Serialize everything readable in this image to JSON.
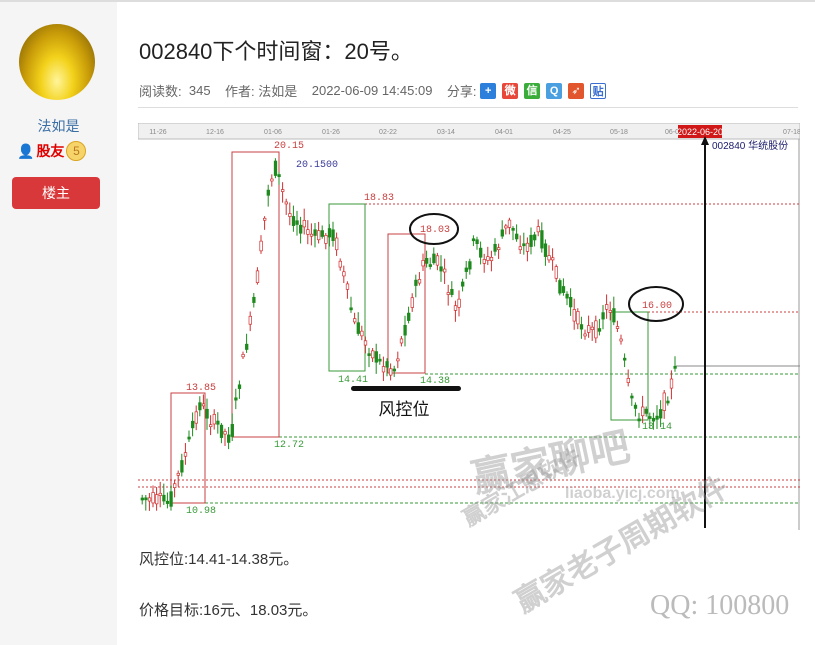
{
  "sidebar": {
    "username": "法如是",
    "rank": "股友",
    "level": "5",
    "owner_button": "楼主"
  },
  "post": {
    "title": "002840下个时间窗：20号。",
    "reads_label": "阅读数:",
    "reads": "345",
    "author_label": "作者:",
    "author": "法如是",
    "datetime": "2022-06-09 14:45:09",
    "share_label": "分享:",
    "share_icons": [
      "plus-icon",
      "weibo-icon",
      "wechat-icon",
      "qq-icon",
      "tencent-weibo-icon",
      "tieba-icon"
    ],
    "lines": [
      "风控位:14.41-14.38元。",
      "价格目标:16元、18.03元。"
    ]
  },
  "chart_image": {
    "dates": [
      "11-26",
      "12-16",
      "01-06",
      "01-26",
      "02-22",
      "03-14",
      "04-01",
      "04-25",
      "05-18",
      "06-0",
      "07-18"
    ],
    "highlight_date": "2022-06-20",
    "stock": "002840  华统股份",
    "levels": {
      "high": "20.15",
      "high_marker": "20.1500",
      "l1": "18.83",
      "l2": "18.03",
      "l3": "16.00",
      "l4": "13.85",
      "l5": "14.41",
      "l6": "14.38",
      "l7": "12.72",
      "l8": "13.14",
      "l9": "10.98"
    },
    "annotation": "风控位",
    "colors": {
      "up": "#d03030",
      "down": "#1e8a1e",
      "box_red": "#c84040",
      "box_green": "#3a9a3a"
    }
  },
  "watermarks": {
    "a": "赢家江恩软件",
    "b": "赢家聊吧",
    "c": "liaoba.yicj.com",
    "d": "赢家老子周期软件",
    "e": "QQ: 100800"
  }
}
